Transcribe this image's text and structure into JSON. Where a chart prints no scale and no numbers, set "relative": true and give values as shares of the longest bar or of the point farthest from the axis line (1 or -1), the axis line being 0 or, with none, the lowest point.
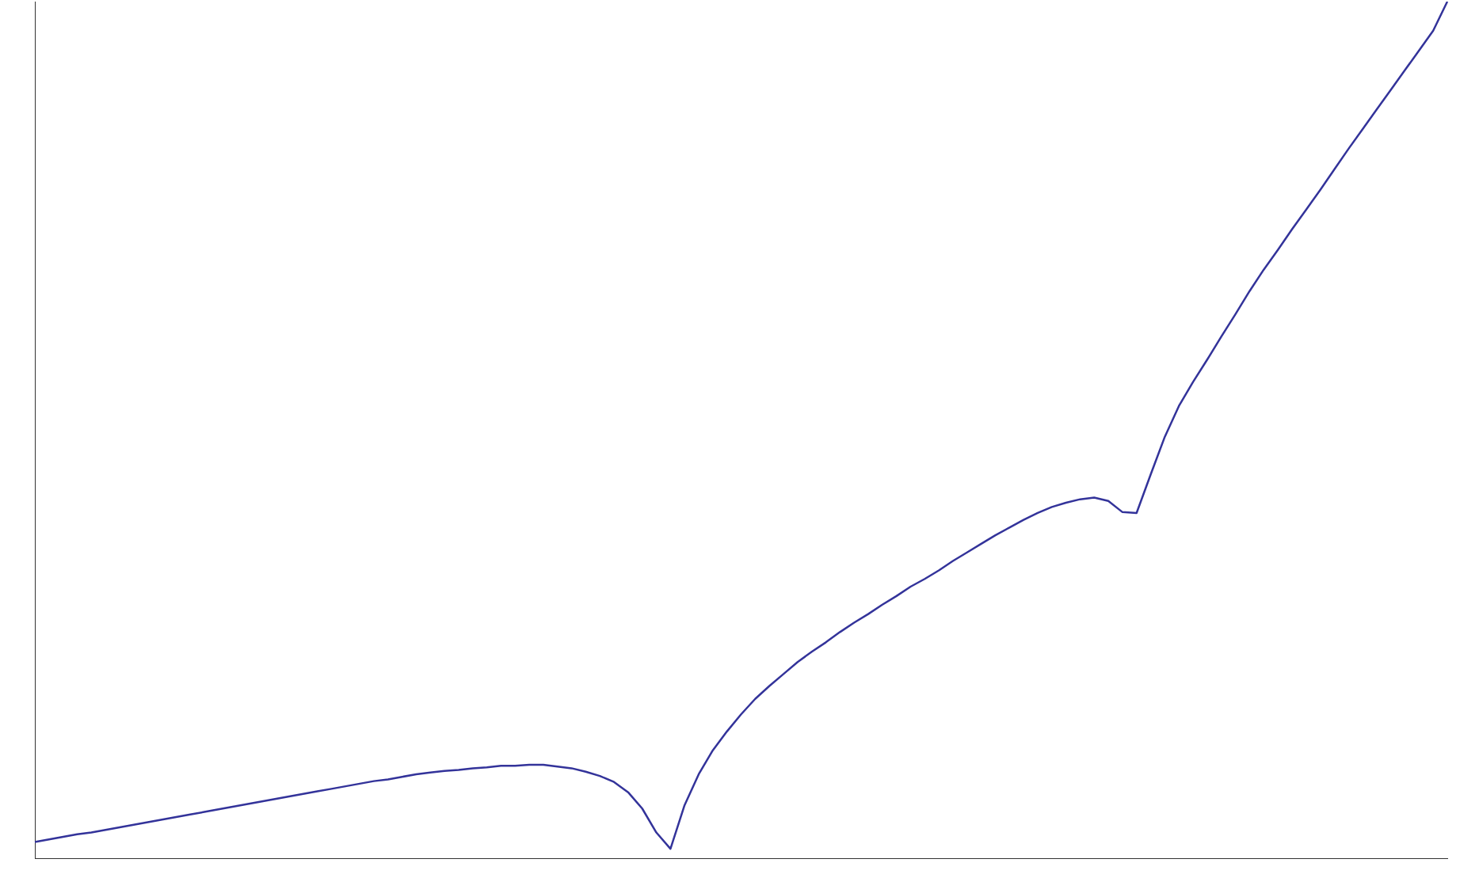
{
  "chart_data": {
    "type": "line",
    "relative": true,
    "color": "#33339a",
    "marker": "none",
    "grid": false,
    "legend": false,
    "tick_labels": false,
    "categories": [
      null,
      null,
      null,
      null,
      null,
      null,
      null,
      null,
      null,
      null,
      null,
      null,
      null,
      null,
      null,
      null,
      null,
      null,
      null,
      null,
      null,
      null,
      null,
      null,
      null,
      null,
      null,
      null,
      null,
      null,
      null,
      null,
      null,
      null,
      null,
      null,
      null,
      null,
      null,
      null,
      null,
      null,
      null,
      null,
      null,
      null,
      null,
      null,
      null,
      null,
      null,
      null,
      null,
      null,
      null,
      null,
      null,
      null,
      null,
      null,
      null,
      null,
      null,
      null,
      null,
      null,
      null,
      null,
      null,
      null,
      null,
      null,
      null,
      null,
      null,
      null,
      null,
      null,
      null,
      null,
      null,
      null,
      null,
      null,
      null,
      null,
      null,
      null,
      null,
      null,
      null,
      null,
      null,
      null,
      null,
      null,
      null,
      null,
      null,
      null,
      null
    ],
    "values": [
      0.019,
      0.022,
      0.025,
      0.028,
      0.03,
      0.033,
      0.036,
      0.039,
      0.042,
      0.045,
      0.048,
      0.051,
      0.054,
      0.057,
      0.06,
      0.063,
      0.066,
      0.069,
      0.072,
      0.075,
      0.078,
      0.081,
      0.084,
      0.087,
      0.09,
      0.092,
      0.095,
      0.098,
      0.1,
      0.102,
      0.103,
      0.105,
      0.106,
      0.108,
      0.108,
      0.109,
      0.109,
      0.107,
      0.105,
      0.101,
      0.096,
      0.089,
      0.077,
      0.058,
      0.03,
      0.011,
      0.062,
      0.098,
      0.126,
      0.148,
      0.168,
      0.186,
      0.201,
      0.215,
      0.229,
      0.241,
      0.252,
      0.264,
      0.275,
      0.285,
      0.296,
      0.306,
      0.317,
      0.326,
      0.336,
      0.347,
      0.357,
      0.367,
      0.377,
      0.386,
      0.395,
      0.403,
      0.41,
      0.415,
      0.419,
      0.421,
      0.417,
      0.404,
      0.403,
      0.448,
      0.492,
      0.528,
      0.556,
      0.582,
      0.609,
      0.635,
      0.662,
      0.687,
      0.71,
      0.734,
      0.757,
      0.78,
      0.804,
      0.828,
      0.851,
      0.874,
      0.897,
      0.92,
      0.943,
      0.966,
      1
    ]
  }
}
